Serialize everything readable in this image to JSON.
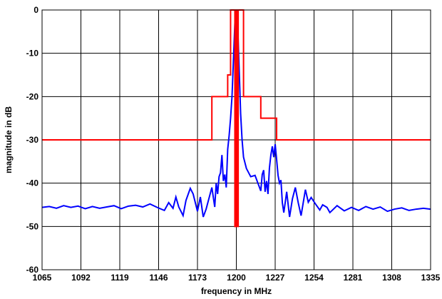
{
  "chart_data": {
    "type": "line",
    "title": "",
    "xlabel": "frequency in MHz",
    "ylabel": "magnitude in dB",
    "xlim": [
      1065,
      1335
    ],
    "ylim": [
      -60,
      0
    ],
    "x_ticks": [
      1065,
      1092,
      1119,
      1146,
      1173,
      1200,
      1227,
      1254,
      1281,
      1308,
      1335
    ],
    "y_ticks": [
      0,
      -10,
      -20,
      -30,
      -40,
      -50,
      -60
    ],
    "grid": true,
    "legend": "none",
    "series": [
      {
        "color": "#0000ff",
        "x": [
          1065,
          1070,
          1075,
          1080,
          1085,
          1090,
          1095,
          1100,
          1105,
          1110,
          1115,
          1120,
          1125,
          1130,
          1135,
          1140,
          1145,
          1150,
          1153,
          1156,
          1158,
          1160,
          1163,
          1165,
          1168,
          1170,
          1173,
          1175,
          1177,
          1179,
          1181,
          1183,
          1185,
          1186,
          1187,
          1188,
          1189,
          1190,
          1191,
          1192,
          1193,
          1194,
          1195,
          1196,
          1197,
          1198,
          1199,
          1200,
          1201,
          1202,
          1203,
          1204,
          1205,
          1207,
          1210,
          1213,
          1215,
          1217,
          1218,
          1219,
          1220,
          1221,
          1222,
          1223,
          1224,
          1225,
          1226,
          1227,
          1228,
          1229,
          1230,
          1231,
          1232,
          1233,
          1235,
          1237,
          1239,
          1241,
          1243,
          1245,
          1248,
          1250,
          1252,
          1255,
          1258,
          1260,
          1263,
          1265,
          1270,
          1275,
          1280,
          1285,
          1290,
          1295,
          1300,
          1305,
          1310,
          1315,
          1320,
          1325,
          1330,
          1335
        ],
        "y": [
          -45.6,
          -45.4,
          -45.8,
          -45.2,
          -45.6,
          -45.3,
          -45.9,
          -45.4,
          -45.8,
          -45.5,
          -45.2,
          -45.9,
          -45.3,
          -45.1,
          -45.5,
          -44.8,
          -45.6,
          -46.3,
          -44.5,
          -45.8,
          -43.2,
          -45.5,
          -47.5,
          -44.0,
          -41.2,
          -42.5,
          -46.5,
          -43.2,
          -47.8,
          -46.0,
          -43.5,
          -41.0,
          -45.5,
          -40.0,
          -42.5,
          -38.5,
          -37.6,
          -33.5,
          -39.5,
          -38.0,
          -41.0,
          -32.2,
          -29.0,
          -25.0,
          -20.0,
          -11.5,
          -3.0,
          -0.5,
          -4.0,
          -14.0,
          -24.0,
          -30.0,
          -34.0,
          -36.6,
          -38.5,
          -38.2,
          -40.0,
          -41.8,
          -38.0,
          -37.0,
          -42.0,
          -39.5,
          -42.5,
          -36.5,
          -33.5,
          -31.5,
          -34.0,
          -31.0,
          -34.5,
          -38.2,
          -40.0,
          -39.3,
          -44.6,
          -46.8,
          -42.0,
          -47.8,
          -43.6,
          -41.0,
          -44.5,
          -47.5,
          -41.5,
          -44.4,
          -43.3,
          -44.8,
          -46.2,
          -45.0,
          -45.6,
          -46.8,
          -45.2,
          -46.4,
          -45.6,
          -46.3,
          -45.4,
          -46.0,
          -45.5,
          -46.5,
          -46.0,
          -45.7,
          -46.3,
          -46.0,
          -45.8,
          -46.0
        ]
      },
      {
        "color": "#ff0000",
        "x": [
          1065,
          1183,
          1183,
          1194,
          1194,
          1196,
          1196,
          1199,
          1199,
          1199.4,
          1199.4,
          1200,
          1200,
          1200.4,
          1200.4,
          1200.9,
          1200.9,
          1201.3,
          1201.3,
          1205,
          1205,
          1205,
          1205,
          1217,
          1217,
          1228,
          1228,
          1335
        ],
        "y": [
          -30,
          -30,
          -20,
          -20,
          -15,
          -15,
          0,
          0,
          -50,
          -50,
          0,
          0,
          -50,
          -50,
          0,
          0,
          -50,
          -50,
          0,
          0,
          -15,
          -15,
          -20,
          -20,
          -25,
          -25,
          -30,
          -30
        ]
      }
    ]
  }
}
